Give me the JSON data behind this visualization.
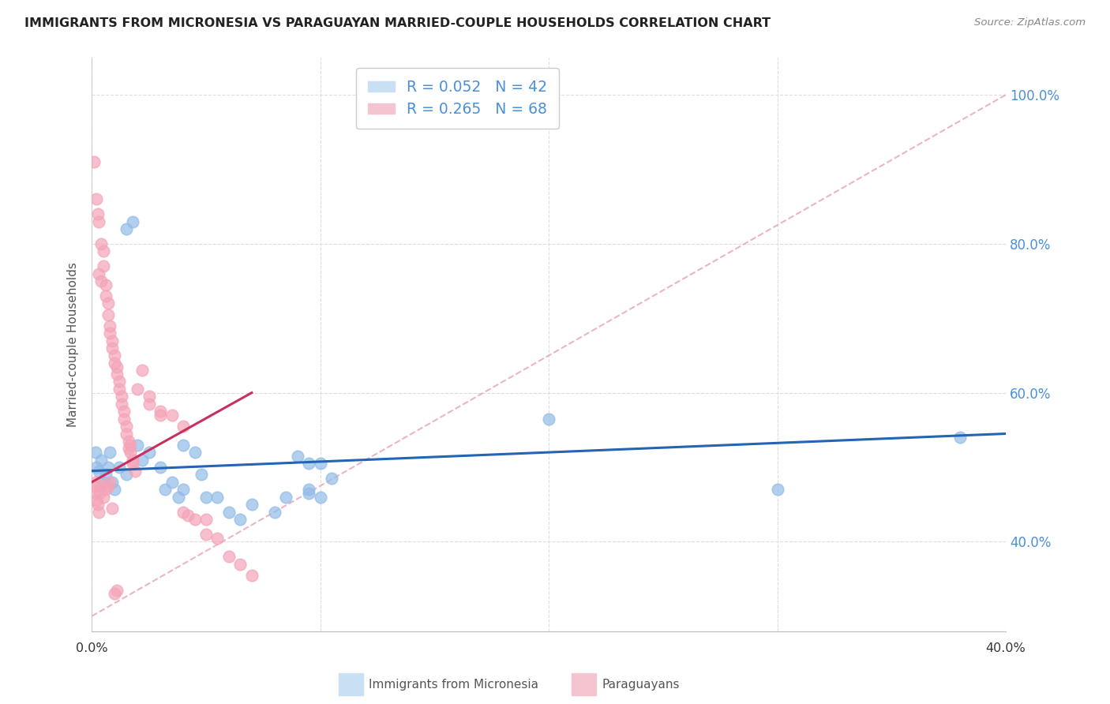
{
  "title": "IMMIGRANTS FROM MICRONESIA VS PARAGUAYAN MARRIED-COUPLE HOUSEHOLDS CORRELATION CHART",
  "source": "Source: ZipAtlas.com",
  "ylabel": "Married-couple Households",
  "xlim": [
    0.0,
    40.0
  ],
  "ylim": [
    28.0,
    105.0
  ],
  "ytick_vals": [
    40.0,
    60.0,
    80.0,
    100.0
  ],
  "ytick_labels": [
    "40.0%",
    "60.0%",
    "80.0%",
    "100.0%"
  ],
  "xtick_vals": [
    0.0,
    10.0,
    20.0,
    30.0,
    40.0
  ],
  "xtick_show": [
    0.0,
    40.0
  ],
  "legend1_label": "R = 0.052   N = 42",
  "legend2_label": "R = 0.265   N = 68",
  "label_color": "#4a90d9",
  "blue_color": "#92bce8",
  "pink_color": "#f4a4b8",
  "blue_line_color": "#2464b4",
  "pink_line_color": "#c83060",
  "pink_dash_color": "#e8a8b8",
  "blue_line": [
    [
      0.0,
      49.5
    ],
    [
      40.0,
      54.5
    ]
  ],
  "pink_line": [
    [
      0.0,
      48.0
    ],
    [
      7.0,
      60.0
    ]
  ],
  "pink_dash_line": [
    [
      0.0,
      30.0
    ],
    [
      40.0,
      100.0
    ]
  ],
  "blue_points": [
    [
      0.15,
      52.0
    ],
    [
      0.2,
      50.0
    ],
    [
      0.3,
      49.5
    ],
    [
      0.4,
      51.0
    ],
    [
      0.5,
      48.0
    ],
    [
      0.6,
      49.0
    ],
    [
      0.7,
      50.0
    ],
    [
      0.8,
      52.0
    ],
    [
      0.9,
      48.0
    ],
    [
      1.0,
      47.0
    ],
    [
      1.2,
      50.0
    ],
    [
      1.5,
      49.0
    ],
    [
      1.5,
      82.0
    ],
    [
      1.8,
      83.0
    ],
    [
      2.0,
      53.0
    ],
    [
      2.2,
      51.0
    ],
    [
      2.5,
      52.0
    ],
    [
      3.0,
      50.0
    ],
    [
      3.2,
      47.0
    ],
    [
      3.5,
      48.0
    ],
    [
      3.8,
      46.0
    ],
    [
      4.0,
      47.0
    ],
    [
      4.0,
      53.0
    ],
    [
      4.5,
      52.0
    ],
    [
      4.8,
      49.0
    ],
    [
      5.0,
      46.0
    ],
    [
      5.5,
      46.0
    ],
    [
      6.0,
      44.0
    ],
    [
      6.5,
      43.0
    ],
    [
      7.0,
      45.0
    ],
    [
      8.0,
      44.0
    ],
    [
      8.5,
      46.0
    ],
    [
      9.0,
      51.5
    ],
    [
      9.5,
      46.5
    ],
    [
      9.5,
      47.0
    ],
    [
      9.5,
      50.5
    ],
    [
      10.0,
      46.0
    ],
    [
      10.0,
      50.5
    ],
    [
      10.5,
      48.5
    ],
    [
      20.0,
      56.5
    ],
    [
      30.0,
      47.0
    ],
    [
      38.0,
      54.0
    ]
  ],
  "pink_points": [
    [
      0.1,
      91.0
    ],
    [
      0.2,
      86.0
    ],
    [
      0.25,
      84.0
    ],
    [
      0.3,
      83.0
    ],
    [
      0.3,
      76.0
    ],
    [
      0.4,
      80.0
    ],
    [
      0.4,
      75.0
    ],
    [
      0.5,
      79.0
    ],
    [
      0.5,
      77.0
    ],
    [
      0.6,
      74.5
    ],
    [
      0.6,
      73.0
    ],
    [
      0.7,
      72.0
    ],
    [
      0.7,
      70.5
    ],
    [
      0.8,
      69.0
    ],
    [
      0.8,
      68.0
    ],
    [
      0.9,
      67.0
    ],
    [
      0.9,
      66.0
    ],
    [
      1.0,
      65.0
    ],
    [
      1.0,
      64.0
    ],
    [
      1.1,
      63.5
    ],
    [
      1.1,
      62.5
    ],
    [
      1.2,
      61.5
    ],
    [
      1.2,
      60.5
    ],
    [
      1.3,
      59.5
    ],
    [
      1.3,
      58.5
    ],
    [
      1.4,
      57.5
    ],
    [
      1.4,
      56.5
    ],
    [
      1.5,
      55.5
    ],
    [
      1.5,
      54.5
    ],
    [
      1.6,
      53.5
    ],
    [
      1.6,
      52.5
    ],
    [
      1.7,
      53.0
    ],
    [
      1.7,
      52.0
    ],
    [
      1.8,
      51.0
    ],
    [
      1.8,
      50.5
    ],
    [
      1.9,
      49.5
    ],
    [
      2.0,
      60.5
    ],
    [
      2.2,
      63.0
    ],
    [
      2.5,
      59.5
    ],
    [
      2.5,
      58.5
    ],
    [
      3.0,
      57.5
    ],
    [
      3.0,
      57.0
    ],
    [
      3.5,
      57.0
    ],
    [
      4.0,
      55.5
    ],
    [
      4.0,
      44.0
    ],
    [
      4.2,
      43.5
    ],
    [
      4.5,
      43.0
    ],
    [
      5.0,
      43.0
    ],
    [
      5.0,
      41.0
    ],
    [
      5.5,
      40.5
    ],
    [
      6.0,
      38.0
    ],
    [
      6.5,
      37.0
    ],
    [
      7.0,
      35.5
    ],
    [
      0.1,
      47.5
    ],
    [
      0.15,
      48.0
    ],
    [
      0.15,
      46.5
    ],
    [
      0.2,
      45.5
    ],
    [
      0.25,
      45.0
    ],
    [
      0.3,
      44.0
    ],
    [
      0.35,
      46.5
    ],
    [
      0.4,
      47.5
    ],
    [
      0.5,
      46.0
    ],
    [
      0.6,
      47.0
    ],
    [
      0.7,
      47.5
    ],
    [
      0.8,
      48.0
    ],
    [
      0.9,
      44.5
    ],
    [
      1.0,
      33.0
    ],
    [
      1.1,
      33.5
    ]
  ]
}
